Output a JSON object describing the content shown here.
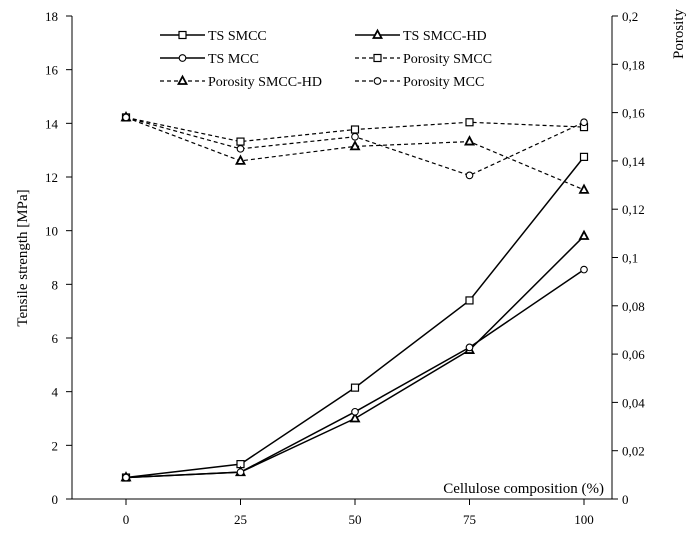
{
  "chart_data": {
    "type": "line",
    "x_categories": [
      "0",
      "25",
      "50",
      "75",
      "100"
    ],
    "x_values": [
      0,
      25,
      50,
      75,
      100
    ],
    "xlabel": "Cellulose composition (%)",
    "ylabel_left": "Tensile strength [MPa]",
    "ylabel_right": "Porosity",
    "ylim_left": [
      0,
      18
    ],
    "ylim_right": [
      0,
      0.2
    ],
    "yticks_left": [
      "0",
      "2",
      "4",
      "6",
      "8",
      "10",
      "12",
      "14",
      "16",
      "18"
    ],
    "yticks_right": [
      "0",
      "0,02",
      "0,04",
      "0,06",
      "0,08",
      "0,1",
      "0,12",
      "0,14",
      "0,16",
      "0,18",
      "0,2"
    ],
    "grid": false,
    "legend_position": "top-center",
    "series": [
      {
        "name": "TS SMCC",
        "axis": "left",
        "style": "solid",
        "marker": "square",
        "values": [
          0.8,
          1.3,
          4.15,
          7.4,
          12.75
        ]
      },
      {
        "name": "TS SMCC-HD",
        "axis": "left",
        "style": "solid",
        "marker": "triangle",
        "values": [
          0.8,
          1.0,
          3.0,
          5.55,
          9.8
        ]
      },
      {
        "name": "TS MCC",
        "axis": "left",
        "style": "solid",
        "marker": "circle",
        "values": [
          0.8,
          1.0,
          3.25,
          5.65,
          8.55
        ]
      },
      {
        "name": "Porosity SMCC",
        "axis": "right",
        "style": "dashed",
        "marker": "square",
        "values": [
          0.158,
          0.148,
          0.153,
          0.156,
          0.154
        ]
      },
      {
        "name": "Porosity SMCC-HD",
        "axis": "right",
        "style": "dashed",
        "marker": "triangle",
        "values": [
          0.158,
          0.14,
          0.146,
          0.148,
          0.128
        ]
      },
      {
        "name": "Porosity MCC",
        "axis": "right",
        "style": "dashed",
        "marker": "circle",
        "values": [
          0.158,
          0.145,
          0.15,
          0.134,
          0.156
        ]
      }
    ]
  }
}
